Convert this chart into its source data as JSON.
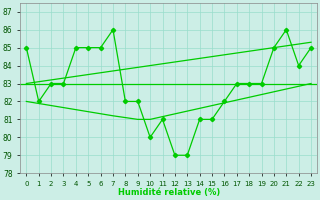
{
  "background_color": "#cceee6",
  "grid_color": "#99ddcc",
  "line_color": "#00cc00",
  "xlim": [
    -0.5,
    23.5
  ],
  "ylim": [
    78,
    87.5
  ],
  "yticks": [
    78,
    79,
    80,
    81,
    82,
    83,
    84,
    85,
    86,
    87
  ],
  "xticks": [
    0,
    1,
    2,
    3,
    4,
    5,
    6,
    7,
    8,
    9,
    10,
    11,
    12,
    13,
    14,
    15,
    16,
    17,
    18,
    19,
    20,
    21,
    22,
    23
  ],
  "xlabel": "Humidité relative (%)",
  "spiky_line": [
    85,
    82,
    83,
    83,
    85,
    85,
    85,
    86,
    82,
    82,
    80,
    81,
    79,
    79,
    81,
    81,
    82,
    83,
    83,
    83,
    85,
    86,
    84,
    85
  ],
  "flat_line_y": 83,
  "rising_line": [
    [
      0,
      83
    ],
    [
      23,
      85.3
    ]
  ],
  "descending_line": [
    [
      0,
      82
    ],
    [
      7,
      81.2
    ],
    [
      9,
      81
    ],
    [
      10,
      81
    ],
    [
      23,
      83
    ]
  ]
}
